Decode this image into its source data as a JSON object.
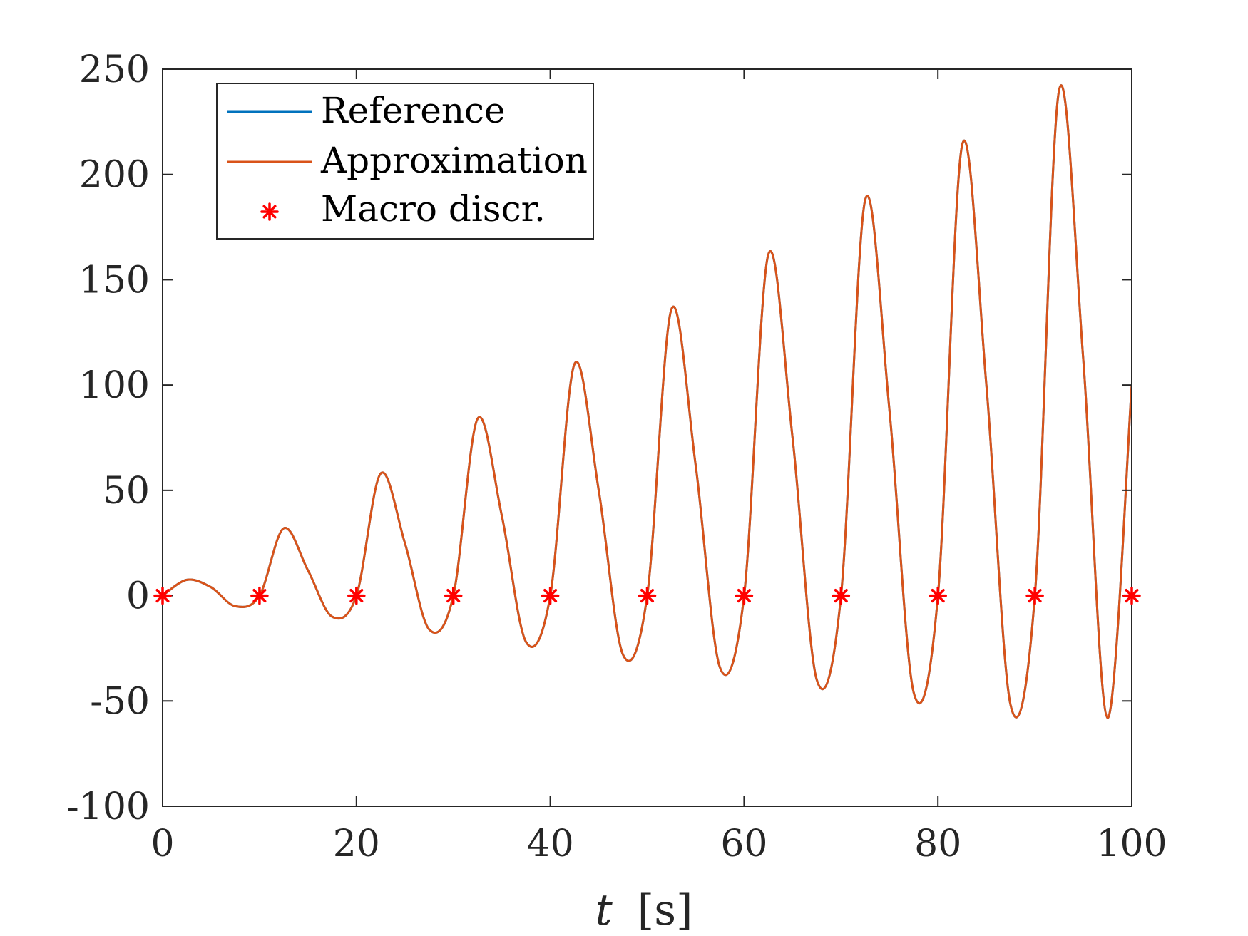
{
  "chart_data": {
    "type": "line",
    "title": "",
    "xlabel_var": "t",
    "xlabel_unit": "[s]",
    "ylabel": "",
    "xlim": [
      0,
      100
    ],
    "ylim": [
      -100,
      250
    ],
    "xticks": [
      0,
      20,
      40,
      60,
      80,
      100
    ],
    "yticks": [
      -100,
      -50,
      0,
      50,
      100,
      150,
      200,
      250
    ],
    "xtick_labels": [
      "0",
      "20",
      "40",
      "60",
      "80",
      "100"
    ],
    "ytick_labels": [
      "-100",
      "-50",
      "0",
      "50",
      "100",
      "150",
      "200",
      "250"
    ],
    "grid": false,
    "legend_position": "top-left",
    "series": [
      {
        "name": "Reference",
        "color": "#0072BD",
        "style": "line",
        "x": [
          0,
          2.5,
          5,
          7.5,
          10,
          12.5,
          15,
          17.5,
          20,
          22.5,
          25,
          27.5,
          30,
          32.5,
          35,
          37.5,
          40,
          42.5,
          45,
          47.5,
          50,
          52.5,
          55,
          57.5,
          60,
          62.5,
          65,
          67.5,
          70,
          72.5,
          75,
          77.5,
          80,
          82.5,
          85,
          87.5,
          90,
          92.5,
          95,
          97.5,
          100
        ],
        "y": [
          0,
          7.5,
          4,
          -5,
          0,
          32,
          12,
          -10,
          0,
          58,
          25,
          -16,
          0,
          84,
          38,
          -22,
          0,
          110,
          50,
          -28,
          0,
          136,
          62,
          -34,
          0,
          162,
          75,
          -40,
          0,
          188,
          88,
          -46,
          0,
          214,
          100,
          -52,
          0,
          240,
          112,
          -58,
          100
        ]
      },
      {
        "name": "Approximation",
        "color": "#D95319",
        "style": "line",
        "x": [
          0,
          2.5,
          5,
          7.5,
          10,
          12.5,
          15,
          17.5,
          20,
          22.5,
          25,
          27.5,
          30,
          32.5,
          35,
          37.5,
          40,
          42.5,
          45,
          47.5,
          50,
          52.5,
          55,
          57.5,
          60,
          62.5,
          65,
          67.5,
          70,
          72.5,
          75,
          77.5,
          80,
          82.5,
          85,
          87.5,
          90,
          92.5,
          95,
          97.5,
          100
        ],
        "y": [
          0,
          7.5,
          4,
          -5,
          0,
          32,
          12,
          -10,
          0,
          58,
          25,
          -16,
          0,
          84,
          38,
          -22,
          0,
          110,
          50,
          -28,
          0,
          136,
          62,
          -34,
          0,
          162,
          75,
          -40,
          0,
          188,
          88,
          -46,
          0,
          214,
          100,
          -52,
          0,
          240,
          112,
          -58,
          100
        ]
      },
      {
        "name": "Macro discr.",
        "color": "#FF0000",
        "style": "marker",
        "x": [
          0,
          10,
          20,
          30,
          40,
          50,
          60,
          70,
          80,
          90,
          100
        ],
        "y": [
          0,
          0,
          0,
          0,
          0,
          0,
          0,
          0,
          0,
          0,
          0
        ]
      }
    ]
  }
}
